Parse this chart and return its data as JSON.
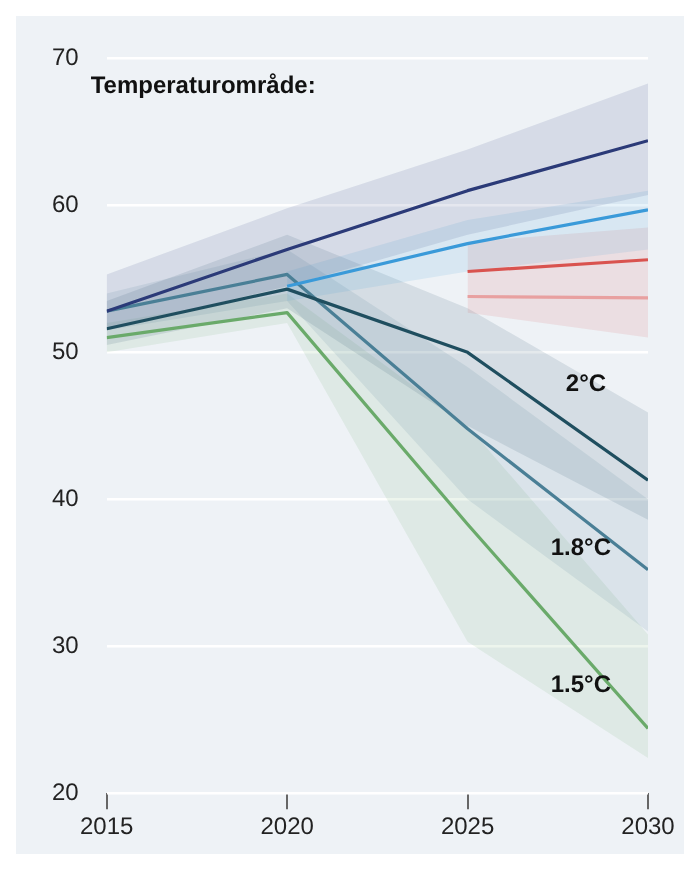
{
  "chart_data": {
    "type": "line",
    "legend_title": "Temperaturområde:",
    "x": [
      2015,
      2020,
      2025,
      2030
    ],
    "xlim": [
      2015,
      2030
    ],
    "xticks": [
      2015,
      2020,
      2025,
      2030
    ],
    "ylim": [
      20,
      70
    ],
    "yticks": [
      20,
      30,
      40,
      50,
      60,
      70
    ],
    "grid": "y",
    "legend": false,
    "marker": "none",
    "line_style": "solid",
    "series": [
      {
        "color": "#2b3a78",
        "values": [
          52.8,
          57,
          61,
          64.4
        ],
        "lower": [
          51.5,
          54.5,
          58,
          60.7
        ],
        "upper": [
          55.3,
          59.8,
          63.8,
          68.3
        ]
      },
      {
        "color": "#3a9ad9",
        "x": [
          2020,
          2025,
          2030
        ],
        "values": [
          54.5,
          57.4,
          59.7
        ],
        "lower": [
          53.5,
          55.5,
          57
        ],
        "upper": [
          55.5,
          59,
          61
        ]
      },
      {
        "color": "#d9534f",
        "x": [
          2025,
          2030
        ],
        "values": [
          55.5,
          56.3
        ],
        "lower": [
          52.7,
          51
        ],
        "upper": [
          57.5,
          58.5
        ]
      },
      {
        "color": "#e8a0a0",
        "x": [
          2025,
          2030
        ],
        "values": [
          53.8,
          53.7
        ]
      },
      {
        "name": "2°C",
        "color": "#1f4e5f",
        "values": [
          51.6,
          54.3,
          50,
          41.3
        ],
        "lower": [
          50.5,
          53,
          45,
          38.6
        ],
        "upper": [
          53.5,
          58,
          53,
          45.9
        ]
      },
      {
        "name": "1.8°C",
        "color": "#4a7f96",
        "values": [
          52.8,
          55.3,
          44.8,
          35.2
        ],
        "lower": [
          51.5,
          53.5,
          40,
          31
        ],
        "upper": [
          54,
          57,
          49,
          40
        ]
      },
      {
        "name": "1.5°C",
        "color": "#6aaa6a",
        "values": [
          51,
          52.7,
          38.3,
          24.4
        ],
        "lower": [
          50,
          52,
          30.3,
          22.4
        ],
        "upper": [
          52,
          54,
          45,
          30.8
        ]
      }
    ]
  }
}
